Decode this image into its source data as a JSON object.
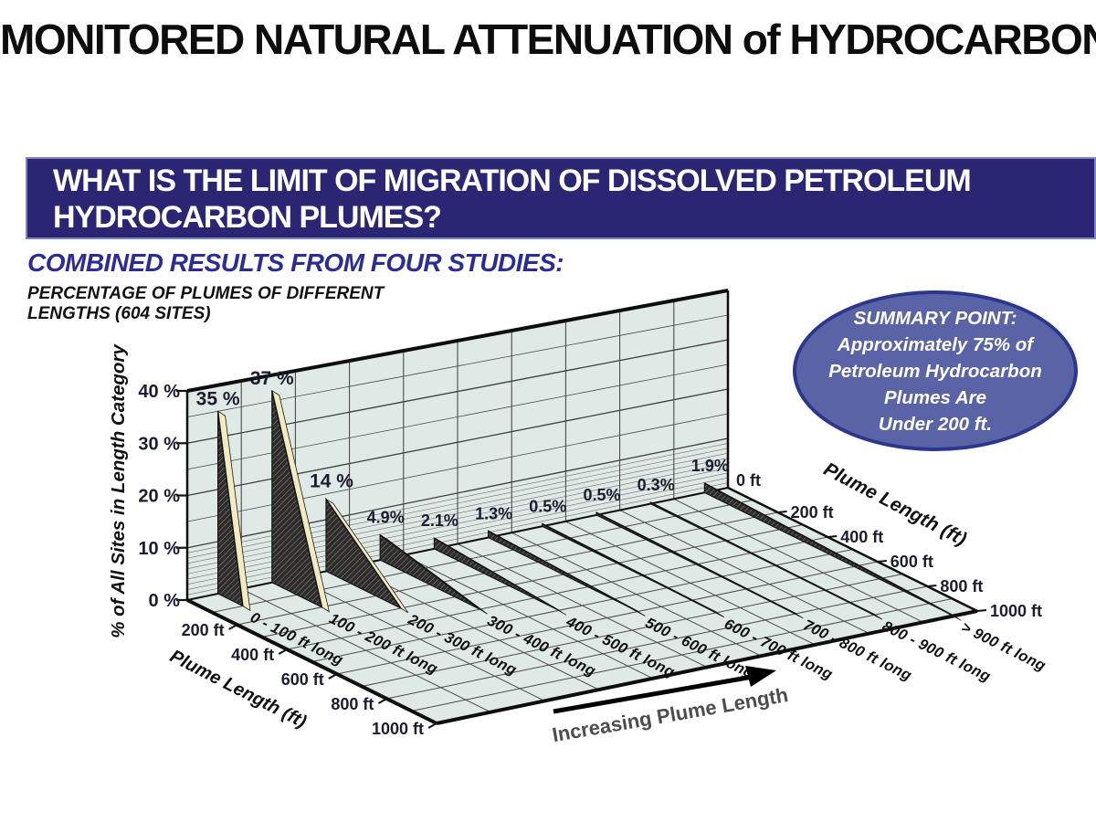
{
  "title": "MONITORED NATURAL ATTENUATION of HYDROCARBONS",
  "question_banner": {
    "lines": [
      "WHAT IS THE LIMIT OF MIGRATION OF DISSOLVED PETROLEUM",
      "HYDROCARBON PLUMES?"
    ]
  },
  "combined_heading": "COMBINED RESULTS FROM FOUR STUDIES:",
  "subtitle_lines": [
    "PERCENTAGE OF PLUMES OF DIFFERENT",
    "LENGTHS (604 SITES)"
  ],
  "summary": {
    "lines": [
      "SUMMARY POINT:",
      "Approximately 75% of",
      "Petroleum Hydrocarbon",
      "Plumes Are",
      "Under 200 ft."
    ]
  },
  "chart_data": {
    "type": "bar",
    "projection": "3d-ribbon",
    "title": "PERCENTAGE OF PLUMES OF DIFFERENT LENGTHS (604 SITES)",
    "categories": [
      "0 - 100 ft long",
      "100 - 200 ft long",
      "200 - 300 ft long",
      "300 - 400 ft long",
      "400 - 500 ft long",
      "500 - 600 ft long",
      "600 - 700 ft long",
      "700 - 800 ft long",
      "800 - 900 ft long",
      "> 900 ft long"
    ],
    "values": [
      35,
      37,
      14,
      4.9,
      2.1,
      1.3,
      0.5,
      0.5,
      0.3,
      1.9
    ],
    "value_labels": [
      "35 %",
      "37 %",
      "14 %",
      "4.9%",
      "2.1%",
      "1.3%",
      "0.5%",
      "0.5%",
      "0.3%",
      "1.9%"
    ],
    "ylabel": "% of All Sites in Length Category",
    "ylim": [
      0,
      40
    ],
    "y_tick_labels": [
      "0 %",
      "10 %",
      "20 %",
      "30 %",
      "40 %"
    ],
    "depth_axis_label": "Plume Length (ft)",
    "depth_ticks_left": [
      "200 ft",
      "400 ft",
      "600 ft",
      "800 ft",
      "1000 ft"
    ],
    "depth_ticks_right": [
      "0 ft",
      "200 ft",
      "400 ft",
      "600 ft",
      "800 ft",
      "1000 ft"
    ],
    "arrow_label": "Increasing Plume Length",
    "grid": true,
    "legend": "none"
  },
  "colors": {
    "banner_bg": "#2b2673",
    "banner_border": "#7d85bd",
    "banner_text": "#ffffff",
    "heading_blue": "#2c2c96",
    "ellipse_fill": "#5a63a6",
    "ellipse_border": "#2a378c",
    "wall_fill": "#dfe9e5",
    "grid_line": "#3d3d3d",
    "ribbon_dark": "#2e2d2b",
    "ribbon_hatch": "#8a8883",
    "ribbon_top": "#f2ebc2",
    "tick_text": "#1c1c30",
    "arrow_text": "#4d4d4d"
  }
}
